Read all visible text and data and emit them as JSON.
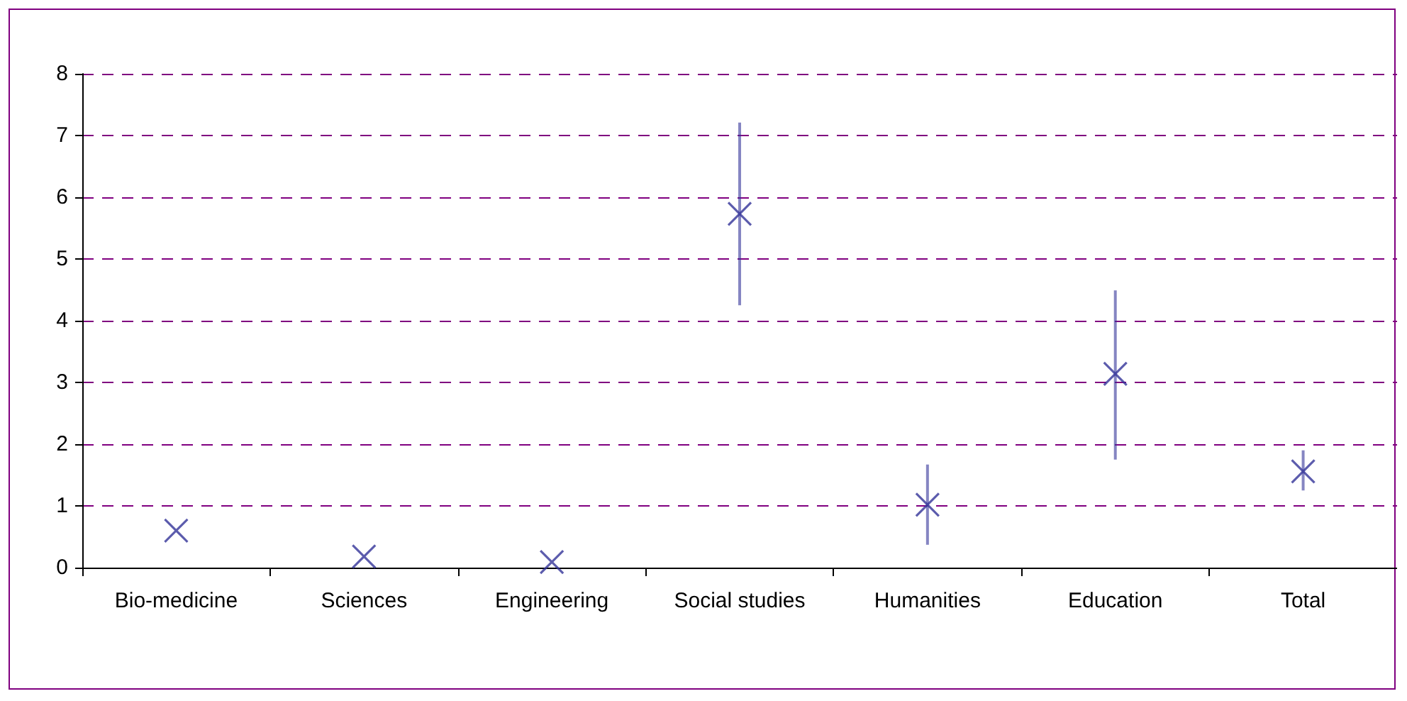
{
  "chart_data": {
    "type": "scatter",
    "categories": [
      "Bio-medicine",
      "Sciences",
      "Engineering",
      "Social studies",
      "Humanities",
      "Education",
      "Total"
    ],
    "series": [
      {
        "color": "#333399",
        "values": [
          0.6,
          0.18,
          0.09,
          5.73,
          1.02,
          3.14,
          1.56
        ],
        "errors": [
          null,
          null,
          null,
          [
            4.25,
            7.21
          ],
          [
            0.37,
            1.67
          ],
          [
            1.75,
            4.49
          ],
          [
            1.25,
            1.9
          ]
        ]
      }
    ],
    "ylim": [
      0,
      8
    ],
    "yticks": [
      0,
      1,
      2,
      3,
      4,
      5,
      6,
      7,
      8
    ],
    "grid": "y",
    "marker": "cross"
  }
}
